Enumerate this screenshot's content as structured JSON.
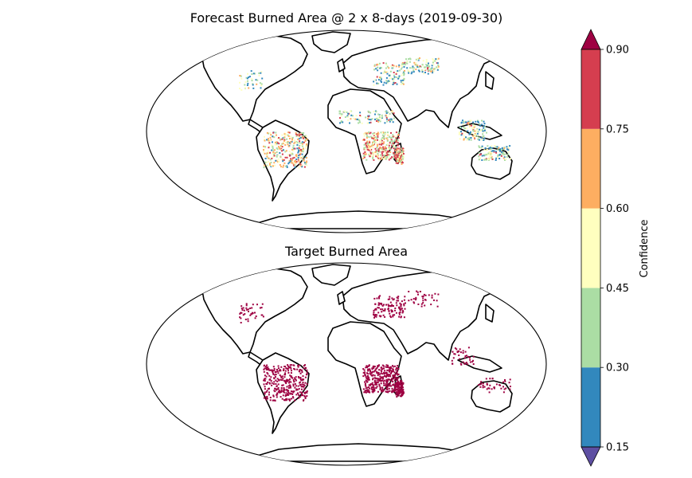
{
  "panels": [
    {
      "title": "Forecast Burned Area @ 2 x 8-days (2019-09-30)",
      "kind": "forecast",
      "hotspots": [
        {
          "name": "north-america-northwest",
          "density": "low"
        },
        {
          "name": "eastern-europe",
          "density": "medium"
        },
        {
          "name": "central-asia",
          "density": "medium"
        },
        {
          "name": "sahel",
          "density": "medium"
        },
        {
          "name": "central-south-america",
          "density": "high"
        },
        {
          "name": "southern-africa",
          "density": "high"
        },
        {
          "name": "madagascar",
          "density": "medium"
        },
        {
          "name": "southeast-asia-indonesia",
          "density": "medium"
        },
        {
          "name": "northern-australia",
          "density": "medium"
        }
      ]
    },
    {
      "title": "Target Burned Area",
      "kind": "target",
      "marker_color": "#9e0142",
      "hotspots": [
        {
          "name": "north-america-northwest",
          "density": "low"
        },
        {
          "name": "eastern-europe",
          "density": "medium"
        },
        {
          "name": "central-asia",
          "density": "low"
        },
        {
          "name": "central-south-america",
          "density": "high"
        },
        {
          "name": "southern-africa",
          "density": "high"
        },
        {
          "name": "madagascar",
          "density": "medium"
        },
        {
          "name": "southeast-asia",
          "density": "low"
        },
        {
          "name": "northern-australia",
          "density": "low"
        }
      ]
    }
  ],
  "colorbar": {
    "label": "Confidence",
    "ticks": [
      "0.15",
      "0.30",
      "0.45",
      "0.60",
      "0.75",
      "0.90"
    ],
    "bins": [
      {
        "from": 0.15,
        "to": 0.3,
        "color": "#3288bd"
      },
      {
        "from": 0.3,
        "to": 0.45,
        "color": "#abdda4"
      },
      {
        "from": 0.45,
        "to": 0.6,
        "color": "#ffffbf"
      },
      {
        "from": 0.6,
        "to": 0.75,
        "color": "#fdae61"
      },
      {
        "from": 0.75,
        "to": 0.9,
        "color": "#d53e4f"
      }
    ],
    "under_color": "#5e4fa2",
    "over_color": "#9e0142"
  }
}
